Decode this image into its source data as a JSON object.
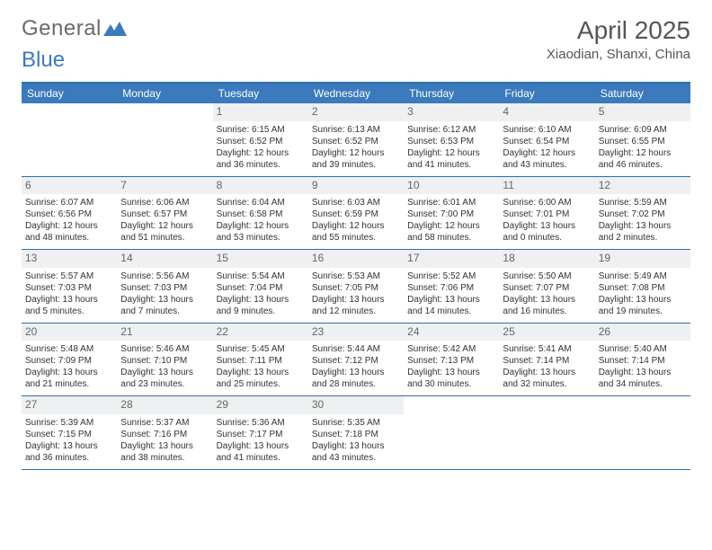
{
  "logo": {
    "text_gen": "General",
    "text_blue": "Blue"
  },
  "title": "April 2025",
  "location": "Xiaodian, Shanxi, China",
  "colors": {
    "header_bg": "#3a7abd",
    "header_text": "#ffffff",
    "border": "#2f6fad",
    "daynum_bg": "#eef0f1",
    "daynum_text": "#666666",
    "body_text": "#333333"
  },
  "weekdays": [
    "Sunday",
    "Monday",
    "Tuesday",
    "Wednesday",
    "Thursday",
    "Friday",
    "Saturday"
  ],
  "weeks": [
    [
      null,
      null,
      {
        "n": "1",
        "sr": "Sunrise: 6:15 AM",
        "ss": "Sunset: 6:52 PM",
        "d1": "Daylight: 12 hours",
        "d2": "and 36 minutes."
      },
      {
        "n": "2",
        "sr": "Sunrise: 6:13 AM",
        "ss": "Sunset: 6:52 PM",
        "d1": "Daylight: 12 hours",
        "d2": "and 39 minutes."
      },
      {
        "n": "3",
        "sr": "Sunrise: 6:12 AM",
        "ss": "Sunset: 6:53 PM",
        "d1": "Daylight: 12 hours",
        "d2": "and 41 minutes."
      },
      {
        "n": "4",
        "sr": "Sunrise: 6:10 AM",
        "ss": "Sunset: 6:54 PM",
        "d1": "Daylight: 12 hours",
        "d2": "and 43 minutes."
      },
      {
        "n": "5",
        "sr": "Sunrise: 6:09 AM",
        "ss": "Sunset: 6:55 PM",
        "d1": "Daylight: 12 hours",
        "d2": "and 46 minutes."
      }
    ],
    [
      {
        "n": "6",
        "sr": "Sunrise: 6:07 AM",
        "ss": "Sunset: 6:56 PM",
        "d1": "Daylight: 12 hours",
        "d2": "and 48 minutes."
      },
      {
        "n": "7",
        "sr": "Sunrise: 6:06 AM",
        "ss": "Sunset: 6:57 PM",
        "d1": "Daylight: 12 hours",
        "d2": "and 51 minutes."
      },
      {
        "n": "8",
        "sr": "Sunrise: 6:04 AM",
        "ss": "Sunset: 6:58 PM",
        "d1": "Daylight: 12 hours",
        "d2": "and 53 minutes."
      },
      {
        "n": "9",
        "sr": "Sunrise: 6:03 AM",
        "ss": "Sunset: 6:59 PM",
        "d1": "Daylight: 12 hours",
        "d2": "and 55 minutes."
      },
      {
        "n": "10",
        "sr": "Sunrise: 6:01 AM",
        "ss": "Sunset: 7:00 PM",
        "d1": "Daylight: 12 hours",
        "d2": "and 58 minutes."
      },
      {
        "n": "11",
        "sr": "Sunrise: 6:00 AM",
        "ss": "Sunset: 7:01 PM",
        "d1": "Daylight: 13 hours",
        "d2": "and 0 minutes."
      },
      {
        "n": "12",
        "sr": "Sunrise: 5:59 AM",
        "ss": "Sunset: 7:02 PM",
        "d1": "Daylight: 13 hours",
        "d2": "and 2 minutes."
      }
    ],
    [
      {
        "n": "13",
        "sr": "Sunrise: 5:57 AM",
        "ss": "Sunset: 7:03 PM",
        "d1": "Daylight: 13 hours",
        "d2": "and 5 minutes."
      },
      {
        "n": "14",
        "sr": "Sunrise: 5:56 AM",
        "ss": "Sunset: 7:03 PM",
        "d1": "Daylight: 13 hours",
        "d2": "and 7 minutes."
      },
      {
        "n": "15",
        "sr": "Sunrise: 5:54 AM",
        "ss": "Sunset: 7:04 PM",
        "d1": "Daylight: 13 hours",
        "d2": "and 9 minutes."
      },
      {
        "n": "16",
        "sr": "Sunrise: 5:53 AM",
        "ss": "Sunset: 7:05 PM",
        "d1": "Daylight: 13 hours",
        "d2": "and 12 minutes."
      },
      {
        "n": "17",
        "sr": "Sunrise: 5:52 AM",
        "ss": "Sunset: 7:06 PM",
        "d1": "Daylight: 13 hours",
        "d2": "and 14 minutes."
      },
      {
        "n": "18",
        "sr": "Sunrise: 5:50 AM",
        "ss": "Sunset: 7:07 PM",
        "d1": "Daylight: 13 hours",
        "d2": "and 16 minutes."
      },
      {
        "n": "19",
        "sr": "Sunrise: 5:49 AM",
        "ss": "Sunset: 7:08 PM",
        "d1": "Daylight: 13 hours",
        "d2": "and 19 minutes."
      }
    ],
    [
      {
        "n": "20",
        "sr": "Sunrise: 5:48 AM",
        "ss": "Sunset: 7:09 PM",
        "d1": "Daylight: 13 hours",
        "d2": "and 21 minutes."
      },
      {
        "n": "21",
        "sr": "Sunrise: 5:46 AM",
        "ss": "Sunset: 7:10 PM",
        "d1": "Daylight: 13 hours",
        "d2": "and 23 minutes."
      },
      {
        "n": "22",
        "sr": "Sunrise: 5:45 AM",
        "ss": "Sunset: 7:11 PM",
        "d1": "Daylight: 13 hours",
        "d2": "and 25 minutes."
      },
      {
        "n": "23",
        "sr": "Sunrise: 5:44 AM",
        "ss": "Sunset: 7:12 PM",
        "d1": "Daylight: 13 hours",
        "d2": "and 28 minutes."
      },
      {
        "n": "24",
        "sr": "Sunrise: 5:42 AM",
        "ss": "Sunset: 7:13 PM",
        "d1": "Daylight: 13 hours",
        "d2": "and 30 minutes."
      },
      {
        "n": "25",
        "sr": "Sunrise: 5:41 AM",
        "ss": "Sunset: 7:14 PM",
        "d1": "Daylight: 13 hours",
        "d2": "and 32 minutes."
      },
      {
        "n": "26",
        "sr": "Sunrise: 5:40 AM",
        "ss": "Sunset: 7:14 PM",
        "d1": "Daylight: 13 hours",
        "d2": "and 34 minutes."
      }
    ],
    [
      {
        "n": "27",
        "sr": "Sunrise: 5:39 AM",
        "ss": "Sunset: 7:15 PM",
        "d1": "Daylight: 13 hours",
        "d2": "and 36 minutes."
      },
      {
        "n": "28",
        "sr": "Sunrise: 5:37 AM",
        "ss": "Sunset: 7:16 PM",
        "d1": "Daylight: 13 hours",
        "d2": "and 38 minutes."
      },
      {
        "n": "29",
        "sr": "Sunrise: 5:36 AM",
        "ss": "Sunset: 7:17 PM",
        "d1": "Daylight: 13 hours",
        "d2": "and 41 minutes."
      },
      {
        "n": "30",
        "sr": "Sunrise: 5:35 AM",
        "ss": "Sunset: 7:18 PM",
        "d1": "Daylight: 13 hours",
        "d2": "and 43 minutes."
      },
      null,
      null,
      null
    ]
  ]
}
